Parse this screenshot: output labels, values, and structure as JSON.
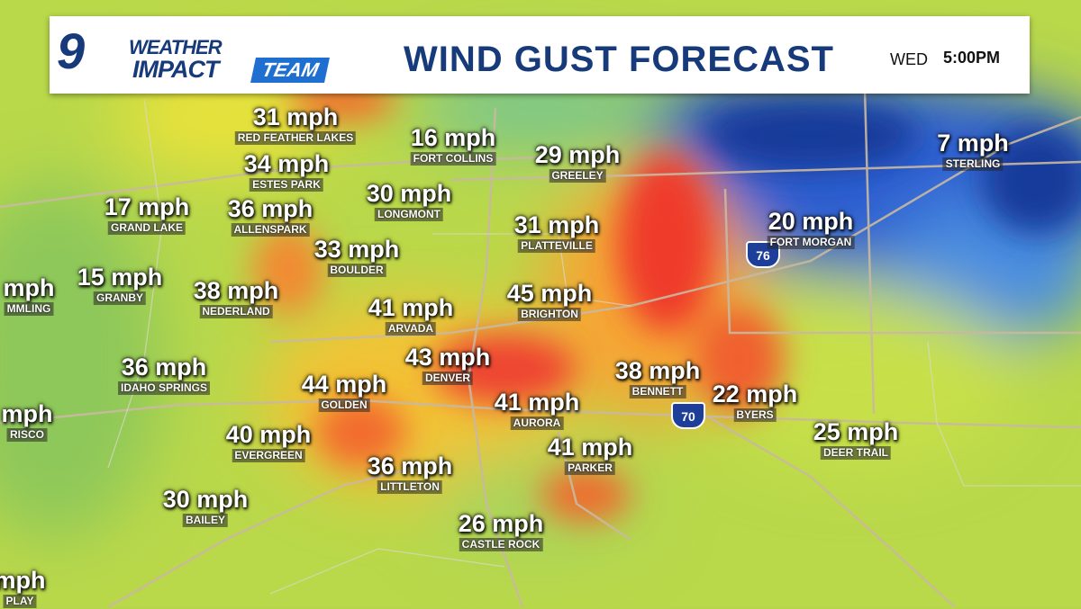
{
  "header": {
    "logo_number": "9",
    "logo_top": "WEATHER",
    "logo_impact": "IMPACT",
    "logo_team": "TEAM",
    "title": "WIND GUST FORECAST",
    "day": "WED",
    "time": "5:00PM"
  },
  "shields": [
    "76",
    "70"
  ],
  "cities": [
    {
      "gust": "31 mph",
      "name": "RED FEATHER LAKES"
    },
    {
      "gust": "16 mph",
      "name": "FORT COLLINS"
    },
    {
      "gust": "34 mph",
      "name": "ESTES PARK"
    },
    {
      "gust": "29 mph",
      "name": "GREELEY"
    },
    {
      "gust": "7 mph",
      "name": "STERLING"
    },
    {
      "gust": "30 mph",
      "name": "LONGMONT"
    },
    {
      "gust": "17 mph",
      "name": "GRAND LAKE"
    },
    {
      "gust": "36 mph",
      "name": "ALLENSPARK"
    },
    {
      "gust": "31 mph",
      "name": "PLATTEVILLE"
    },
    {
      "gust": "20 mph",
      "name": "FORT MORGAN"
    },
    {
      "gust": "33 mph",
      "name": "BOULDER"
    },
    {
      "gust": "15 mph",
      "name": "GRANBY"
    },
    {
      "gust": "38 mph",
      "name": "NEDERLAND"
    },
    {
      "gust": "mph",
      "name": "MMLING"
    },
    {
      "gust": "41 mph",
      "name": "ARVADA"
    },
    {
      "gust": "45 mph",
      "name": "BRIGHTON"
    },
    {
      "gust": "43 mph",
      "name": "DENVER"
    },
    {
      "gust": "36 mph",
      "name": "IDAHO SPRINGS"
    },
    {
      "gust": "44 mph",
      "name": "GOLDEN"
    },
    {
      "gust": "41 mph",
      "name": "AURORA"
    },
    {
      "gust": "38 mph",
      "name": "BENNETT"
    },
    {
      "gust": "22 mph",
      "name": "BYERS"
    },
    {
      "gust": "mph",
      "name": "RISCO"
    },
    {
      "gust": "40 mph",
      "name": "EVERGREEN"
    },
    {
      "gust": "25 mph",
      "name": "DEER TRAIL"
    },
    {
      "gust": "41 mph",
      "name": "PARKER"
    },
    {
      "gust": "36 mph",
      "name": "LITTLETON"
    },
    {
      "gust": "30 mph",
      "name": "BAILEY"
    },
    {
      "gust": "26 mph",
      "name": "CASTLE ROCK"
    },
    {
      "gust": "mph",
      "name": "PLAY"
    }
  ]
}
